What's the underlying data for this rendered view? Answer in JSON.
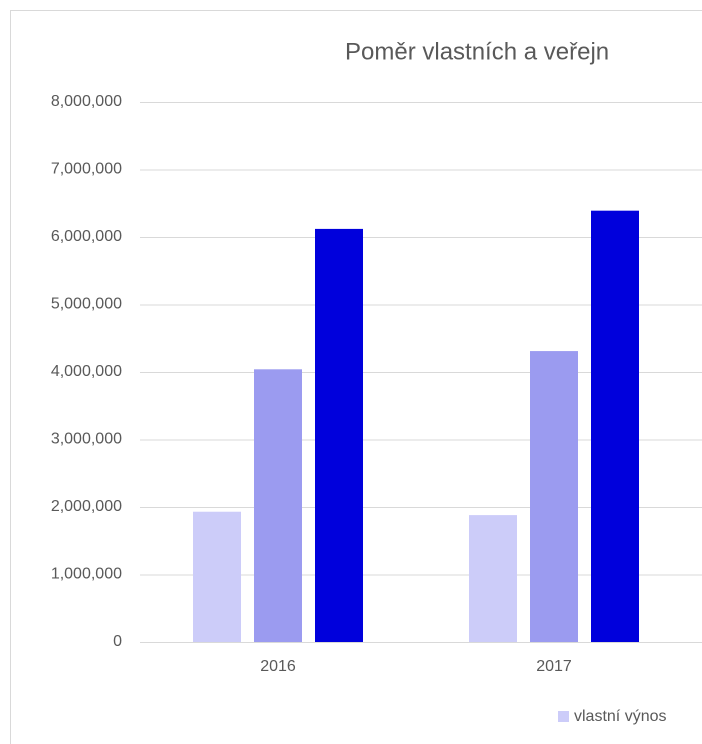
{
  "chart_data": {
    "type": "bar",
    "title": "Poměr vlastních a veřejn",
    "categories": [
      "2016",
      "2017"
    ],
    "series": [
      {
        "name": "vlastní výnos",
        "color": "#ccccf9",
        "values": [
          1930000,
          1880000
        ]
      },
      {
        "color": "#9b9bf0",
        "values": [
          4040000,
          4310000
        ]
      },
      {
        "color": "#0000dc",
        "values": [
          6120000,
          6390000
        ]
      }
    ],
    "ylim": [
      0,
      8000000
    ],
    "yticks": [
      0,
      {
        "value": 1000000,
        "label": "1,000,000"
      },
      {
        "value": 2000000,
        "label": "2,000,000"
      },
      {
        "value": 3000000,
        "label": "3,000,000"
      },
      {
        "value": 4000000,
        "label": "4,000,000"
      },
      {
        "value": 5000000,
        "label": "5,000,000"
      },
      {
        "value": 6000000,
        "label": "6,000,000"
      },
      {
        "value": 7000000,
        "label": "7,000,000"
      },
      {
        "value": 8000000,
        "label": "8,000,000"
      }
    ],
    "grid": true,
    "legend": "bottom"
  }
}
